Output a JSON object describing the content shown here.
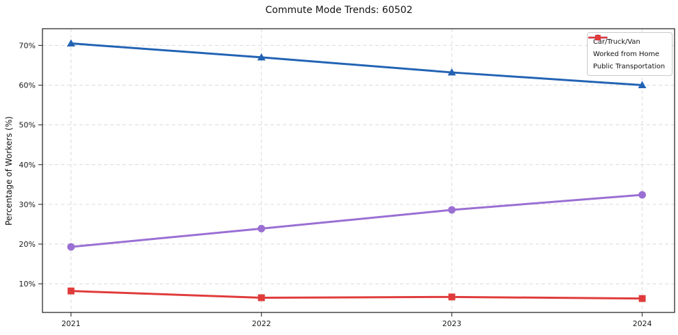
{
  "chart_data": {
    "type": "line",
    "title": "Commute Mode Trends: 60502",
    "xlabel": "",
    "ylabel": "Percentage of Workers (%)",
    "x": [
      2021,
      2022,
      2023,
      2024
    ],
    "x_tick_labels": [
      "2021",
      "2022",
      "2023",
      "2024"
    ],
    "y_ticks": [
      10,
      20,
      30,
      40,
      50,
      60,
      70
    ],
    "y_tick_labels": [
      "10%",
      "20%",
      "30%",
      "40%",
      "50%",
      "60%",
      "70%"
    ],
    "xlim": [
      2020.85,
      2024.17
    ],
    "ylim": [
      2.8,
      74.2
    ],
    "grid": true,
    "grid_style": "dashed",
    "legend_position": "upper right",
    "series": [
      {
        "name": "Car/Truck/Van",
        "color": "#2263b4",
        "marker": "triangle",
        "values": [
          70.5,
          67.0,
          63.2,
          60.0
        ]
      },
      {
        "name": "Worked from Home",
        "color": "#9a6fd3",
        "marker": "circle",
        "values": [
          19.3,
          23.9,
          28.6,
          32.4
        ]
      },
      {
        "name": "Public Transportation",
        "color": "#e03b3b",
        "marker": "square",
        "values": [
          8.2,
          6.5,
          6.7,
          6.3
        ]
      }
    ]
  }
}
